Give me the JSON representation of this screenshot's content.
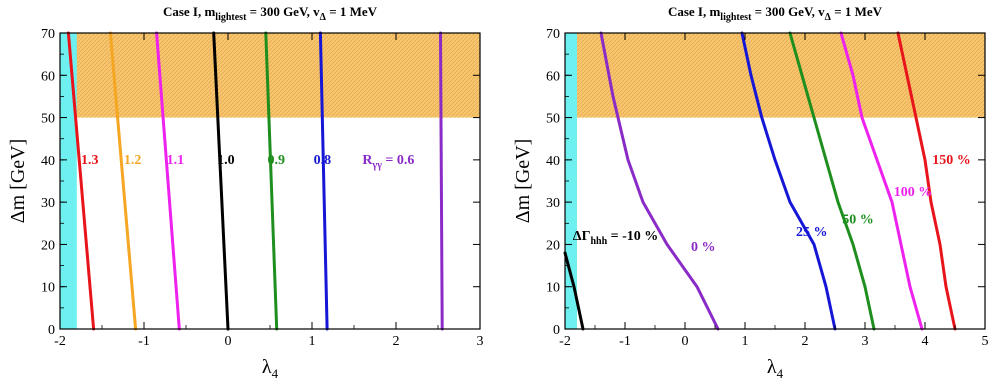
{
  "chart_data": [
    {
      "type": "line",
      "title": "Case I, m_lightest = 300 GeV, v_Δ = 1 MeV",
      "title_parts": {
        "main": "Case I, m",
        "sub1": "lightest",
        "mid": " = 300 GeV, v",
        "sub2": "Δ",
        "end": " = 1 MeV"
      },
      "xlabel": "λ4",
      "xlabel_parts": {
        "main": "λ",
        "sub": "4"
      },
      "ylabel": "Δm [GeV]",
      "xlim": [
        -2,
        3
      ],
      "ylim": [
        0,
        70
      ],
      "xticks": [
        -2,
        -1,
        0,
        1,
        2,
        3
      ],
      "xtick_labels": [
        "-2",
        "-1",
        "0",
        "1",
        "2",
        "3"
      ],
      "yticks": [
        0,
        10,
        20,
        30,
        40,
        50,
        60,
        70
      ],
      "ytick_labels": [
        "0",
        "10",
        "20",
        "30",
        "40",
        "50",
        "60",
        "70"
      ],
      "shaded_regions": [
        {
          "kind": "excluded-top",
          "y_from": 50,
          "y_to": 70,
          "color": "#f7c66e"
        },
        {
          "kind": "excluded-left",
          "x_from": -2,
          "x_to": -1.8,
          "color": "#6ff0f0"
        }
      ],
      "series": [
        {
          "name": "1.3",
          "color": "#e8141b",
          "x": [
            -1.6,
            -1.9
          ],
          "y": [
            0,
            70
          ],
          "label": "1.3",
          "label_pos": {
            "x": -1.75,
            "y": 39
          }
        },
        {
          "name": "1.2",
          "color": "#f5a623",
          "x": [
            -1.1,
            -1.4
          ],
          "y": [
            0,
            70
          ],
          "label": "1.2",
          "label_pos": {
            "x": -1.24,
            "y": 39
          }
        },
        {
          "name": "1.1",
          "color": "#ee22ee",
          "x": [
            -0.58,
            -0.85
          ],
          "y": [
            0,
            70
          ],
          "label": "1.1",
          "label_pos": {
            "x": -0.73,
            "y": 39
          }
        },
        {
          "name": "1.0",
          "color": "#000000",
          "x": [
            0.0,
            -0.17
          ],
          "y": [
            0,
            70
          ],
          "label": "1.0",
          "label_pos": {
            "x": -0.13,
            "y": 39
          }
        },
        {
          "name": "0.9",
          "color": "#1e8f1e",
          "x": [
            0.58,
            0.45
          ],
          "y": [
            0,
            70
          ],
          "label": "0.9",
          "label_pos": {
            "x": 0.47,
            "y": 39
          }
        },
        {
          "name": "0.8",
          "color": "#1616d6",
          "x": [
            1.18,
            1.1
          ],
          "y": [
            0,
            70
          ],
          "label": "0.8",
          "label_pos": {
            "x": 1.02,
            "y": 39
          }
        },
        {
          "name": "0.6",
          "color": "#8a2bc8",
          "x": [
            2.55,
            2.53
          ],
          "y": [
            0,
            70
          ],
          "label": "R_γγ = 0.6",
          "label_pos": {
            "x": 1.6,
            "y": 39
          }
        }
      ],
      "label_parts_06": {
        "main": "R",
        "sub": "γγ",
        "end": " = 0.6"
      }
    },
    {
      "type": "line",
      "title": "Case I, m_lightest = 300 GeV, v_Δ = 1 MeV",
      "title_parts": {
        "main": "Case I, m",
        "sub1": "lightest",
        "mid": " = 300 GeV, v",
        "sub2": "Δ",
        "end": " = 1 MeV"
      },
      "xlabel": "λ4",
      "xlabel_parts": {
        "main": "λ",
        "sub": "4"
      },
      "ylabel": "Δm [GeV]",
      "xlim": [
        -2,
        5
      ],
      "ylim": [
        0,
        70
      ],
      "xticks": [
        -2,
        -1,
        0,
        1,
        2,
        3,
        4,
        5
      ],
      "xtick_labels": [
        "-2",
        "-1",
        "0",
        "1",
        "2",
        "3",
        "4",
        "5"
      ],
      "yticks": [
        0,
        10,
        20,
        30,
        40,
        50,
        60,
        70
      ],
      "ytick_labels": [
        "0",
        "10",
        "20",
        "30",
        "40",
        "50",
        "60",
        "70"
      ],
      "shaded_regions": [
        {
          "kind": "excluded-top",
          "y_from": 50,
          "y_to": 70,
          "color": "#f7c66e"
        },
        {
          "kind": "excluded-left",
          "x_from": -2,
          "x_to": -1.8,
          "color": "#6ff0f0"
        }
      ],
      "series": [
        {
          "name": "-10 %",
          "color": "#000000",
          "x": [
            -1.7,
            -1.85,
            -2.0
          ],
          "y": [
            0,
            10,
            18
          ],
          "label": "ΔΓ_hhh = -10 %",
          "label_pos": {
            "x": -1.87,
            "y": 21
          }
        },
        {
          "name": "0 %",
          "color": "#8a2bc8",
          "x": [
            0.55,
            0.2,
            -0.3,
            -0.7,
            -0.95,
            -1.2,
            -1.4
          ],
          "y": [
            0,
            10,
            20,
            30,
            40,
            55,
            70
          ],
          "label": "0 %",
          "label_pos": {
            "x": 0.1,
            "y": 18.5
          }
        },
        {
          "name": "25 %",
          "color": "#1616d6",
          "x": [
            2.5,
            2.35,
            2.15,
            1.75,
            1.5,
            1.28,
            1.1,
            0.95
          ],
          "y": [
            0,
            10,
            20,
            30,
            40,
            50,
            60,
            70
          ],
          "label": "25 %",
          "label_pos": {
            "x": 1.85,
            "y": 22
          }
        },
        {
          "name": "50 %",
          "color": "#1e8f1e",
          "x": [
            3.15,
            3.0,
            2.8,
            2.55,
            2.35,
            2.15,
            1.95,
            1.75
          ],
          "y": [
            0,
            10,
            20,
            30,
            40,
            50,
            60,
            70
          ],
          "label": "50 %",
          "label_pos": {
            "x": 2.62,
            "y": 25
          }
        },
        {
          "name": "100 %",
          "color": "#ee22ee",
          "x": [
            3.95,
            3.75,
            3.6,
            3.45,
            3.2,
            2.95,
            2.8,
            2.6
          ],
          "y": [
            0,
            10,
            20,
            30,
            40,
            50,
            60,
            70
          ],
          "label": "100 %",
          "label_pos": {
            "x": 3.48,
            "y": 31.5
          }
        },
        {
          "name": "150 %",
          "color": "#e8141b",
          "x": [
            4.5,
            4.35,
            4.25,
            4.1,
            4.0,
            3.85,
            3.7,
            3.55
          ],
          "y": [
            0,
            10,
            20,
            30,
            40,
            50,
            60,
            70
          ],
          "label": "150 %",
          "label_pos": {
            "x": 4.12,
            "y": 39
          }
        }
      ],
      "label_parts_m10": {
        "main": "ΔΓ",
        "sub": "hhh",
        "end": " = -10 %"
      }
    }
  ]
}
